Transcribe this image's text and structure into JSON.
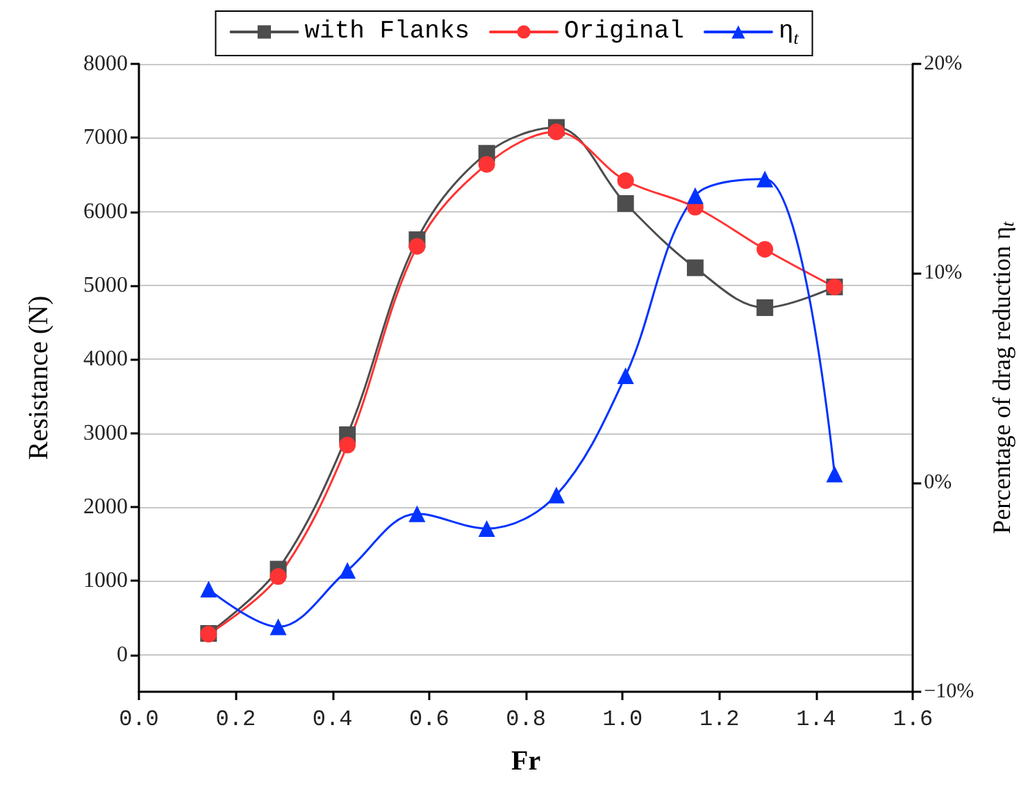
{
  "chart_data": {
    "type": "line",
    "xlabel": "Fr",
    "ylabel": "Resistance (N)",
    "y2label": "Percentage of drag reduction η$_{t}$",
    "x": [
      0.144,
      0.288,
      0.431,
      0.575,
      0.719,
      0.863,
      1.006,
      1.15,
      1.294,
      1.438
    ],
    "series": [
      {
        "name": "with Flanks",
        "color": "#4d4d4d",
        "marker": "square",
        "values": [
          290,
          1160,
          2980,
          5620,
          6790,
          7140,
          6110,
          5240,
          4700,
          4980
        ]
      },
      {
        "name": "Original",
        "color": "#ff3333",
        "marker": "circle",
        "values": [
          280,
          1060,
          2840,
          5530,
          6640,
          7080,
          6420,
          6060,
          5490,
          4980
        ]
      },
      {
        "name": "η$_{t}$",
        "color": "#0033ff",
        "marker": "triangle",
        "axis": "y2",
        "values": [
          -5.1,
          -6.9,
          -4.2,
          -1.5,
          -2.2,
          -0.6,
          5.1,
          13.7,
          14.5,
          0.4
        ]
      }
    ],
    "xlim": [
      0,
      1.6
    ],
    "xticks": [
      {
        "value": 0,
        "label": "0.0"
      },
      {
        "value": 0.2,
        "label": "0.2"
      },
      {
        "value": 0.4,
        "label": "0.4"
      },
      {
        "value": 0.6,
        "label": "0.6"
      },
      {
        "value": 0.8,
        "label": "0.8"
      },
      {
        "value": 1,
        "label": "1.0"
      },
      {
        "value": 1.2,
        "label": "1.2"
      },
      {
        "value": 1.4,
        "label": "1.4"
      },
      {
        "value": 1.6,
        "label": "1.6"
      }
    ],
    "ylim": [
      -500,
      8000
    ],
    "yticks": [
      0,
      1000,
      2000,
      3000,
      4000,
      5000,
      6000,
      7000,
      8000
    ],
    "y2lim": [
      -10,
      20
    ],
    "y2ticks": [
      {
        "value": -10,
        "label": "−10%"
      },
      {
        "value": 0,
        "label": "0%"
      },
      {
        "value": 10,
        "label": "10%"
      },
      {
        "value": 20,
        "label": "20%"
      }
    ],
    "grid": "y",
    "legend": "top",
    "line_style": "solid"
  }
}
